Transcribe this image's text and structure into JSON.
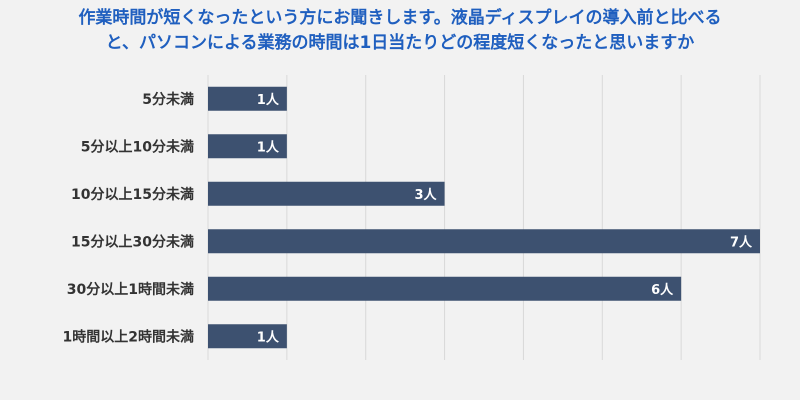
{
  "chart_data": {
    "type": "bar",
    "orientation": "horizontal",
    "title_lines": [
      "作業時間が短くなったという方にお聞きします。液晶ディスプレイの導入前と比べる",
      "と、パソコンによる業務の時間は1日当たりどの程度短くなったと思いますか"
    ],
    "categories": [
      "5分未満",
      "5分以上10分未満",
      "10分以上15分未満",
      "15分以上30分未満",
      "30分以上1時間未満",
      "1時間以上2時間未満"
    ],
    "values": [
      1,
      1,
      3,
      7,
      6,
      1
    ],
    "data_labels": [
      "1人",
      "1人",
      "3人",
      "7人",
      "6人",
      "1人"
    ],
    "xlim": [
      0,
      7
    ],
    "grid": true,
    "legend": "none",
    "colors": {
      "bar": "#3d5170",
      "grid": "#d9d9d9",
      "title": "#1f5fbf",
      "label": "#333333",
      "data_label": "#ffffff"
    }
  }
}
